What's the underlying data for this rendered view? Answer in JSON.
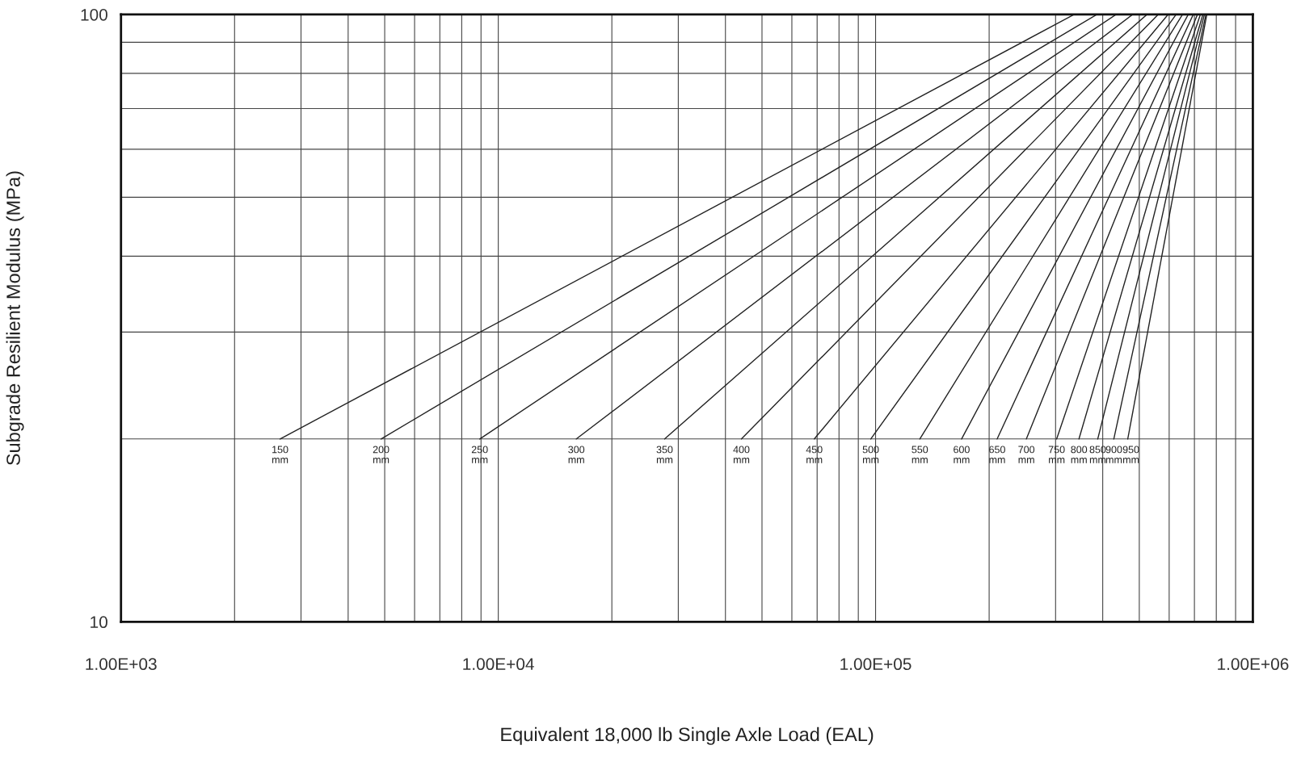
{
  "chart_data": {
    "type": "line",
    "xlabel": "Equivalent 18,000 lb Single Axle Load (EAL)",
    "ylabel": "Subgrade Resilient Modulus (MPa)",
    "log": "xy",
    "grid": true,
    "legend": false,
    "marker": "none",
    "line_style": "solid",
    "xlim": [
      1000,
      1000000
    ],
    "ylim": [
      10,
      100
    ],
    "xticks": [
      {
        "value": 1000,
        "label": "1.00E+03"
      },
      {
        "value": 10000,
        "label": "1.00E+04"
      },
      {
        "value": 100000,
        "label": "1.00E+05"
      },
      {
        "value": 1000000,
        "label": "1.00E+06"
      }
    ],
    "yticks": [
      10,
      100
    ],
    "series": [
      {
        "name": "150\nmm",
        "color": "#222222",
        "x": [
          2640,
          336000
        ],
        "values": [
          20,
          100
        ]
      },
      {
        "name": "200\nmm",
        "color": "#222222",
        "x": [
          4890,
          386000
        ],
        "values": [
          20,
          100
        ]
      },
      {
        "name": "250\nmm",
        "color": "#222222",
        "x": [
          8930,
          434000
        ],
        "values": [
          20,
          100
        ]
      },
      {
        "name": "300\nmm",
        "color": "#222222",
        "x": [
          16100,
          480000
        ],
        "values": [
          20,
          100
        ]
      },
      {
        "name": "350\nmm",
        "color": "#222222",
        "x": [
          27600,
          524000
        ],
        "values": [
          20,
          100
        ]
      },
      {
        "name": "400\nmm",
        "color": "#222222",
        "x": [
          44100,
          561000
        ],
        "values": [
          20,
          100
        ]
      },
      {
        "name": "450\nmm",
        "color": "#222222",
        "x": [
          68800,
          596000
        ],
        "values": [
          20,
          100
        ]
      },
      {
        "name": "500\nmm",
        "color": "#222222",
        "x": [
          97100,
          626000
        ],
        "values": [
          20,
          100
        ]
      },
      {
        "name": "550\nmm",
        "color": "#222222",
        "x": [
          131000,
          651000
        ],
        "values": [
          20,
          100
        ]
      },
      {
        "name": "600\nmm",
        "color": "#222222",
        "x": [
          169000,
          674000
        ],
        "values": [
          20,
          100
        ]
      },
      {
        "name": "650\nmm",
        "color": "#222222",
        "x": [
          210000,
          695000
        ],
        "values": [
          20,
          100
        ]
      },
      {
        "name": "700\nmm",
        "color": "#222222",
        "x": [
          251000,
          713000
        ],
        "values": [
          20,
          100
        ]
      },
      {
        "name": "750\nmm",
        "color": "#222222",
        "x": [
          302000,
          726000
        ],
        "values": [
          20,
          100
        ]
      },
      {
        "name": "800\nmm",
        "color": "#222222",
        "x": [
          346000,
          737000
        ],
        "values": [
          20,
          100
        ]
      },
      {
        "name": "850\nmm",
        "color": "#222222",
        "x": [
          388000,
          744000
        ],
        "values": [
          20,
          100
        ]
      },
      {
        "name": "900\nmm",
        "color": "#222222",
        "x": [
          428000,
          751000
        ],
        "values": [
          20,
          100
        ]
      },
      {
        "name": "950\nmm",
        "color": "#222222",
        "x": [
          466000,
          755000
        ],
        "values": [
          20,
          100
        ]
      }
    ]
  }
}
